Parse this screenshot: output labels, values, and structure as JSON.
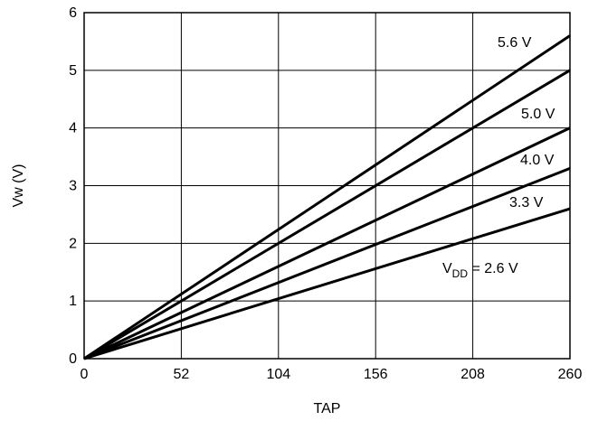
{
  "chart_data": {
    "type": "line",
    "title": "",
    "xlabel": "TAP",
    "ylabel": "Vw (V)",
    "xlim": [
      0,
      260
    ],
    "ylim": [
      0,
      6
    ],
    "xticks": [
      0,
      52,
      104,
      156,
      208,
      260
    ],
    "yticks": [
      0,
      1,
      2,
      3,
      4,
      5,
      6
    ],
    "grid": true,
    "legend": "inline labels at right",
    "series": [
      {
        "name": "5.6 V",
        "label": "5.6 V",
        "x": [
          0,
          260
        ],
        "y": [
          0,
          5.6
        ]
      },
      {
        "name": "5.0 V",
        "label": "5.0 V",
        "x": [
          0,
          260
        ],
        "y": [
          0,
          5.0
        ]
      },
      {
        "name": "4.0 V",
        "label": "4.0 V",
        "x": [
          0,
          260
        ],
        "y": [
          0,
          4.0
        ]
      },
      {
        "name": "3.3 V",
        "label": "3.3 V",
        "x": [
          0,
          260
        ],
        "y": [
          0,
          3.3
        ]
      },
      {
        "name": "2.6 V",
        "label_main": "V",
        "label_sub": "DD",
        "label_rest": " = 2.6 V",
        "x": [
          0,
          260
        ],
        "y": [
          0,
          2.6
        ]
      }
    ],
    "line_color": "#000000",
    "grid_color": "#000000"
  }
}
